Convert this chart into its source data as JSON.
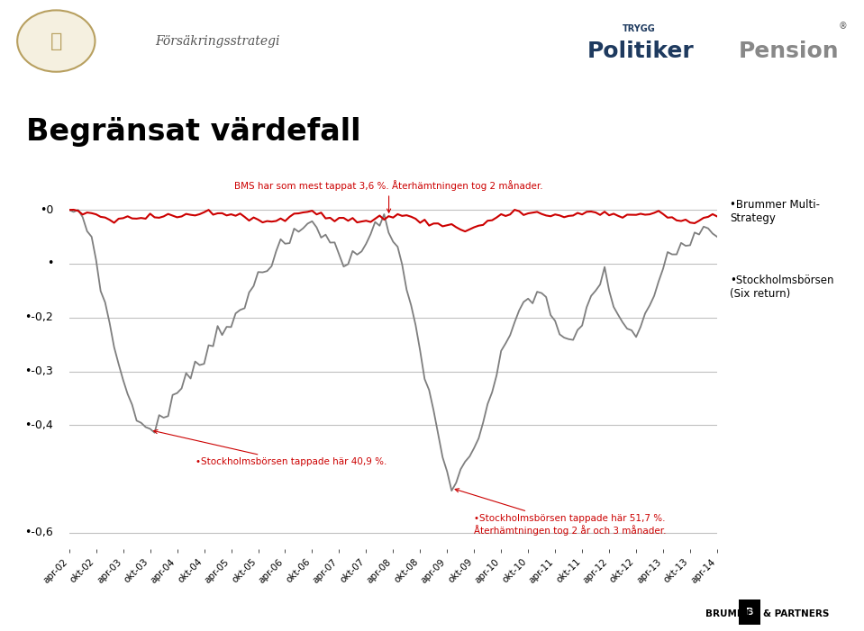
{
  "title": "Begränsat värdefall",
  "bg_color": "#ffffff",
  "header_bar_color": "#1e3a5f",
  "annotation_bms": "BMS har som mest tappat 3,6 %. Återhämtningen tog 2 månader.",
  "annotation_sthlm1": "•Stockholmsbörsen tappade här 40,9 %.",
  "annotation_sthlm2": "•Stockholmsbörsen tappade här 51,7 %.\nÅterhämtningen tog 2 år och 3 månader.",
  "label_bms": "•Brummer Multi-\nStrategy",
  "label_sthlm": "•Stockholmsbörsen\n(Six return)",
  "ytick_vals": [
    0,
    -0.1,
    -0.2,
    -0.3,
    -0.4,
    -0.6
  ],
  "ytick_labels": [
    "•0",
    "•",
    "•-0,2",
    "•-0,3",
    "•-0,4",
    "•-0,6"
  ],
  "ylim": [
    -0.63,
    0.05
  ],
  "line_color_bms": "#cc0000",
  "line_color_sthlm": "#7f7f7f",
  "annotation_color": "#cc0000",
  "grid_color": "#c0c0c0",
  "x_tick_labels": [
    "apr-02",
    "okt-02",
    "apr-03",
    "okt-03",
    "apr-04",
    "okt-04",
    "apr-05",
    "okt-05",
    "apr-06",
    "okt-06",
    "apr-07",
    "okt-07",
    "apr-08",
    "okt-08",
    "apr-09",
    "okt-09",
    "apr-10",
    "okt-10",
    "apr-11",
    "okt-11",
    "apr-12",
    "okt-12",
    "apr-13",
    "okt-13",
    "apr-14"
  ]
}
